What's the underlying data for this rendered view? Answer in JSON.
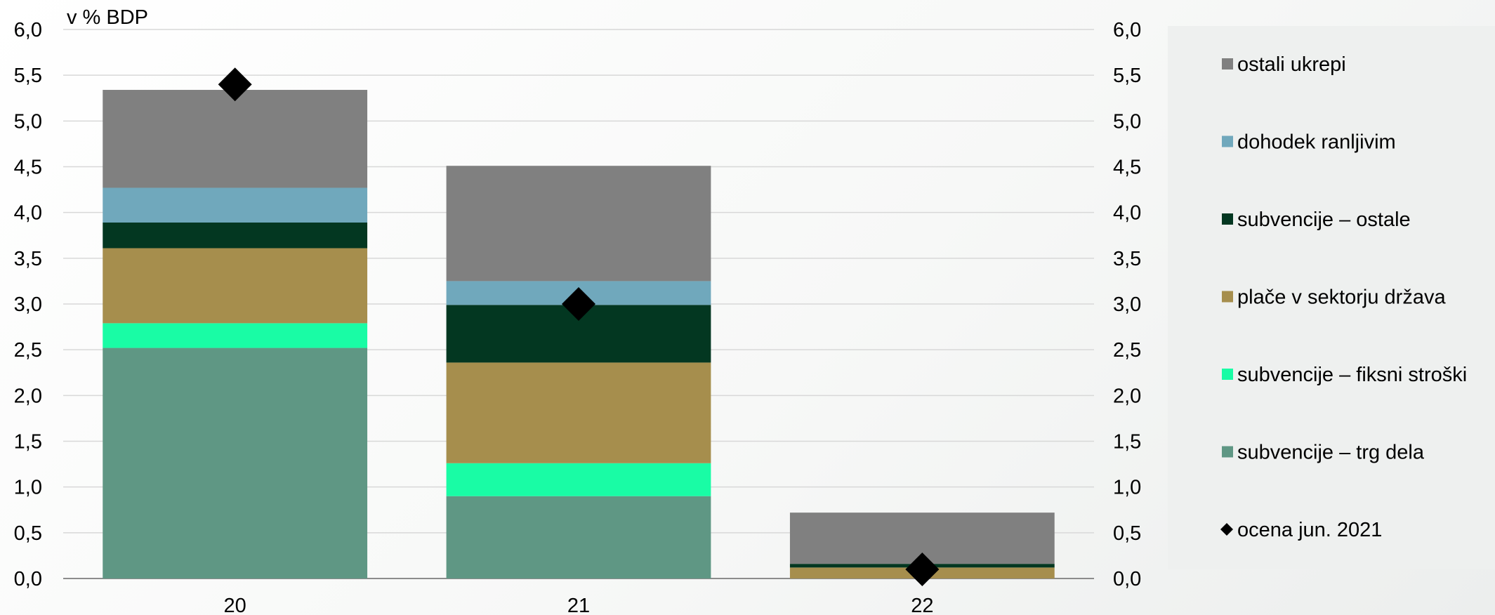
{
  "chart_data": {
    "type": "bar",
    "stacked": true,
    "ylabel": "v % BDP",
    "ylim": [
      0,
      6
    ],
    "ytick_step": 0.5,
    "yticks": [
      "0,0",
      "0,5",
      "1,0",
      "1,5",
      "2,0",
      "2,5",
      "3,0",
      "3,5",
      "4,0",
      "4,5",
      "5,0",
      "5,5",
      "6,0"
    ],
    "right_axis": true,
    "grid": true,
    "legend_position": "right",
    "categories": [
      "20",
      "21",
      "22"
    ],
    "series": [
      {
        "name": "subvencije – trg dela",
        "color": "#5f9784",
        "values": [
          2.52,
          0.9,
          0.0
        ]
      },
      {
        "name": "subvencije – fiksni stroški",
        "color": "#19fca5",
        "values": [
          0.27,
          0.36,
          0.0
        ]
      },
      {
        "name": "plače v sektorju država",
        "color": "#a68e4d",
        "values": [
          0.82,
          1.1,
          0.12
        ]
      },
      {
        "name": "subvencije – ostale",
        "color": "#033721",
        "values": [
          0.28,
          0.63,
          0.04
        ]
      },
      {
        "name": "dohodek ranljivim",
        "color": "#70a8bc",
        "values": [
          0.38,
          0.26,
          0.0
        ]
      },
      {
        "name": "ostali ukrepi",
        "color": "#808080",
        "values": [
          1.07,
          1.26,
          0.56
        ]
      }
    ],
    "markers": {
      "name": "ocena jun. 2021",
      "color": "#000000",
      "shape": "diamond",
      "values": [
        5.4,
        3.0,
        0.1
      ]
    },
    "legend_order": [
      "ostali ukrepi",
      "dohodek ranljivim",
      "subvencije – ostale",
      "plače v sektorju država",
      "subvencije – fiksni stroški",
      "subvencije – trg dela",
      "ocena jun. 2021"
    ]
  }
}
